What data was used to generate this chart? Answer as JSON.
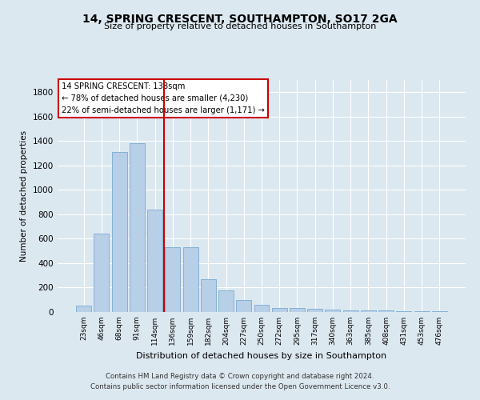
{
  "title": "14, SPRING CRESCENT, SOUTHAMPTON, SO17 2GA",
  "subtitle": "Size of property relative to detached houses in Southampton",
  "xlabel": "Distribution of detached houses by size in Southampton",
  "ylabel": "Number of detached properties",
  "categories": [
    "23sqm",
    "46sqm",
    "68sqm",
    "91sqm",
    "114sqm",
    "136sqm",
    "159sqm",
    "182sqm",
    "204sqm",
    "227sqm",
    "250sqm",
    "272sqm",
    "295sqm",
    "317sqm",
    "340sqm",
    "363sqm",
    "385sqm",
    "408sqm",
    "431sqm",
    "453sqm",
    "476sqm"
  ],
  "values": [
    50,
    640,
    1310,
    1380,
    840,
    530,
    530,
    270,
    180,
    100,
    60,
    35,
    30,
    28,
    20,
    15,
    10,
    10,
    8,
    5,
    5
  ],
  "bar_color": "#b8cfe8",
  "bar_edgecolor": "#7aaad0",
  "red_line_x": 4.5,
  "red_line_color": "#cc0000",
  "annotation_text": "14 SPRING CRESCENT: 138sqm\n← 78% of detached houses are smaller (4,230)\n22% of semi-detached houses are larger (1,171) →",
  "annotation_box_facecolor": "#ffffff",
  "annotation_box_edgecolor": "#cc0000",
  "ylim": [
    0,
    1900
  ],
  "yticks": [
    0,
    200,
    400,
    600,
    800,
    1000,
    1200,
    1400,
    1600,
    1800
  ],
  "grid_color": "#ffffff",
  "bg_color": "#dce8f0",
  "title_fontsize": 10,
  "subtitle_fontsize": 8,
  "footer_line1": "Contains HM Land Registry data © Crown copyright and database right 2024.",
  "footer_line2": "Contains public sector information licensed under the Open Government Licence v3.0."
}
